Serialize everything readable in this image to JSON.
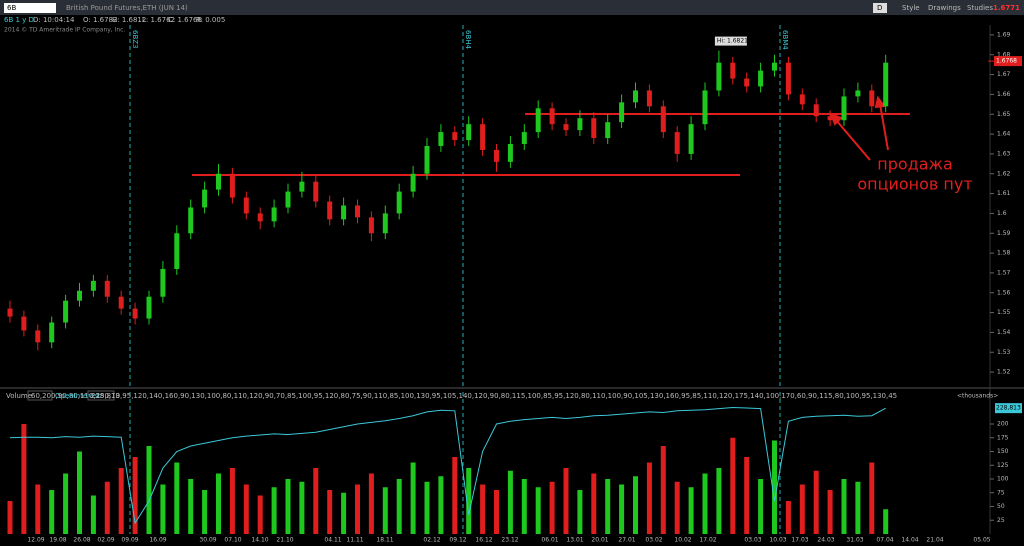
{
  "toolbar": {
    "symbol": "6B",
    "style": "Style",
    "drawings": "Drawings",
    "studies": "Studies",
    "d": "D",
    "last": "1.6771"
  },
  "header": {
    "study": "6B 1 y D",
    "title": "British Pound Futures,ETH (JUN 14)",
    "date": "D: 10:04:14",
    "open": "O: 1.6782",
    "high": "H: 1.6812",
    "low": "L: 1.6762",
    "close": "C: 1.6768",
    "range": "R: 0.005",
    "copyright": "2014 © TD Ameritrade IP Company, Inc."
  },
  "price_chart": {
    "type": "candlestick",
    "ylim": [
      1.515,
      1.695
    ],
    "yticks": [
      1.52,
      1.53,
      1.54,
      1.55,
      1.56,
      1.57,
      1.58,
      1.59,
      1.6,
      1.61,
      1.62,
      1.63,
      1.64,
      1.65,
      1.66,
      1.67,
      1.68,
      1.69
    ],
    "candles": [
      [
        1.552,
        1.556,
        1.545,
        1.548
      ],
      [
        1.548,
        1.551,
        1.538,
        1.541
      ],
      [
        1.541,
        1.544,
        1.531,
        1.535
      ],
      [
        1.535,
        1.548,
        1.532,
        1.545
      ],
      [
        1.545,
        1.559,
        1.542,
        1.556
      ],
      [
        1.556,
        1.565,
        1.553,
        1.561
      ],
      [
        1.561,
        1.569,
        1.558,
        1.566
      ],
      [
        1.566,
        1.569,
        1.555,
        1.558
      ],
      [
        1.558,
        1.561,
        1.549,
        1.552
      ],
      [
        1.552,
        1.555,
        1.544,
        1.547
      ],
      [
        1.547,
        1.561,
        1.544,
        1.558
      ],
      [
        1.558,
        1.576,
        1.555,
        1.572
      ],
      [
        1.572,
        1.594,
        1.569,
        1.59
      ],
      [
        1.59,
        1.607,
        1.587,
        1.603
      ],
      [
        1.603,
        1.616,
        1.6,
        1.612
      ],
      [
        1.612,
        1.625,
        1.609,
        1.62
      ],
      [
        1.62,
        1.623,
        1.605,
        1.608
      ],
      [
        1.608,
        1.611,
        1.597,
        1.6
      ],
      [
        1.6,
        1.603,
        1.592,
        1.596
      ],
      [
        1.596,
        1.607,
        1.593,
        1.603
      ],
      [
        1.603,
        1.615,
        1.6,
        1.611
      ],
      [
        1.611,
        1.621,
        1.608,
        1.616
      ],
      [
        1.616,
        1.619,
        1.603,
        1.606
      ],
      [
        1.606,
        1.609,
        1.594,
        1.597
      ],
      [
        1.597,
        1.608,
        1.594,
        1.604
      ],
      [
        1.604,
        1.607,
        1.595,
        1.598
      ],
      [
        1.598,
        1.601,
        1.586,
        1.59
      ],
      [
        1.59,
        1.604,
        1.587,
        1.6
      ],
      [
        1.6,
        1.615,
        1.597,
        1.611
      ],
      [
        1.611,
        1.624,
        1.608,
        1.62
      ],
      [
        1.62,
        1.638,
        1.617,
        1.634
      ],
      [
        1.634,
        1.645,
        1.631,
        1.641
      ],
      [
        1.641,
        1.644,
        1.634,
        1.637
      ],
      [
        1.637,
        1.649,
        1.634,
        1.645
      ],
      [
        1.645,
        1.648,
        1.629,
        1.632
      ],
      [
        1.632,
        1.635,
        1.621,
        1.626
      ],
      [
        1.626,
        1.639,
        1.623,
        1.635
      ],
      [
        1.635,
        1.645,
        1.632,
        1.641
      ],
      [
        1.641,
        1.657,
        1.638,
        1.653
      ],
      [
        1.653,
        1.656,
        1.642,
        1.645
      ],
      [
        1.645,
        1.648,
        1.639,
        1.642
      ],
      [
        1.642,
        1.652,
        1.639,
        1.648
      ],
      [
        1.648,
        1.651,
        1.635,
        1.638
      ],
      [
        1.638,
        1.65,
        1.635,
        1.646
      ],
      [
        1.646,
        1.66,
        1.643,
        1.656
      ],
      [
        1.656,
        1.666,
        1.653,
        1.662
      ],
      [
        1.662,
        1.665,
        1.651,
        1.654
      ],
      [
        1.654,
        1.657,
        1.638,
        1.641
      ],
      [
        1.641,
        1.644,
        1.626,
        1.63
      ],
      [
        1.63,
        1.649,
        1.627,
        1.645
      ],
      [
        1.645,
        1.666,
        1.642,
        1.662
      ],
      [
        1.662,
        1.6821,
        1.659,
        1.676
      ],
      [
        1.676,
        1.679,
        1.665,
        1.668
      ],
      [
        1.668,
        1.671,
        1.661,
        1.664
      ],
      [
        1.664,
        1.676,
        1.661,
        1.672
      ],
      [
        1.672,
        1.68,
        1.669,
        1.676
      ],
      [
        1.676,
        1.679,
        1.657,
        1.66
      ],
      [
        1.66,
        1.663,
        1.652,
        1.655
      ],
      [
        1.655,
        1.658,
        1.646,
        1.649
      ],
      [
        1.649,
        1.652,
        1.644,
        1.647
      ],
      [
        1.647,
        1.663,
        1.644,
        1.659
      ],
      [
        1.659,
        1.666,
        1.656,
        1.662
      ],
      [
        1.662,
        1.665,
        1.651,
        1.654
      ],
      [
        1.654,
        1.68,
        1.651,
        1.676
      ]
    ],
    "last": 1.6768,
    "last_label": "1.6768",
    "high_note": "Hi: 1.6821",
    "expiries": [
      "6BZ3",
      "6BH4",
      "6BM4"
    ],
    "annotation": [
      "продажа",
      "опционов пут"
    ],
    "up_color": "#1ec81e",
    "down_color": "#e01e1e"
  },
  "volume_chart": {
    "volume_label": "Volume",
    "volume": [
      60,
      200,
      90,
      80,
      110,
      150,
      70,
      95,
      120,
      140,
      160,
      90,
      130,
      100,
      80,
      110,
      120,
      90,
      70,
      85,
      100,
      95,
      120,
      80,
      75,
      90,
      110,
      85,
      100,
      130,
      95,
      105,
      140,
      120,
      90,
      80,
      115,
      100,
      85,
      95,
      120,
      80,
      110,
      100,
      90,
      105,
      130,
      160,
      95,
      85,
      110,
      120,
      175,
      140,
      100,
      170,
      60,
      90,
      115,
      80,
      100,
      95,
      130,
      45
    ],
    "oi_label": "OpenInterest",
    "oi": "228,813",
    "units": "<thousands>",
    "ylim": [
      0,
      240
    ],
    "yticks": [
      25,
      50,
      75,
      100,
      125,
      150,
      175,
      200
    ],
    "open_interest": [
      175,
      176,
      176,
      175,
      177,
      176,
      178,
      177,
      176,
      20,
      60,
      120,
      150,
      160,
      165,
      170,
      175,
      178,
      180,
      182,
      181,
      183,
      185,
      190,
      195,
      200,
      203,
      206,
      210,
      215,
      222,
      225,
      224,
      35,
      150,
      200,
      205,
      208,
      210,
      212,
      210,
      212,
      215,
      216,
      218,
      220,
      222,
      221,
      224,
      225,
      226,
      228,
      230,
      229,
      228,
      60,
      205,
      212,
      214,
      215,
      216,
      214,
      215,
      228.813
    ],
    "oi_color": "#3cc8d8"
  },
  "x_labels": [
    "12.09",
    "19.08",
    "26.08",
    "02.09",
    "09.09",
    "16.09",
    "30.09",
    "07.10",
    "14.10",
    "21.10",
    "04.11",
    "11.11",
    "18.11",
    "02.12",
    "09.12",
    "16.12",
    "23.12",
    "06.01",
    "13.01",
    "20.01",
    "27.01",
    "03.02",
    "10.02",
    "17.02",
    "03.03",
    "10.03",
    "17.03",
    "24.03",
    "31.03",
    "07.04",
    "14.04",
    "21.04",
    "05.05"
  ]
}
